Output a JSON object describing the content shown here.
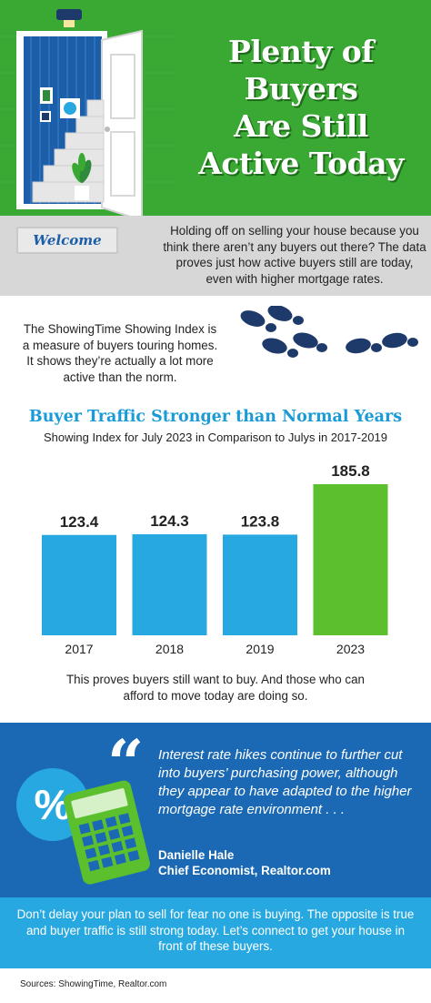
{
  "hero": {
    "title_lines": [
      "Plenty of",
      "Buyers",
      "Are Still",
      "Active Today"
    ],
    "mat_text": "Welcome"
  },
  "intro": {
    "text": "Holding off on selling your house because you think there aren’t any buyers out there? The data proves just how active buyers still are today, even with higher mortgage rates."
  },
  "index_description": {
    "text": "The ShowingTime Showing Index is a measure of buyers touring homes. It shows they’re actually a lot more active than the norm."
  },
  "chart_data": {
    "type": "bar",
    "title": "Buyer Traffic Stronger than Normal Years",
    "subtitle": "Showing Index for July 2023 in Comparison to Julys in 2017-2019",
    "categories": [
      "2017",
      "2018",
      "2019",
      "2023"
    ],
    "values": [
      123.4,
      124.3,
      123.8,
      185.8
    ],
    "value_labels": [
      "123.4",
      "124.3",
      "123.8",
      "185.8"
    ],
    "colors": [
      "#27a8e0",
      "#27a8e0",
      "#27a8e0",
      "#5bbf2e"
    ],
    "xlabel": "",
    "ylabel": "",
    "ylim": [
      0,
      185.8
    ],
    "grid": false,
    "legend": "none"
  },
  "chart_note": {
    "text": "This proves buyers still want to buy. And those who can afford to move today are doing so."
  },
  "quote": {
    "mark": "“",
    "text": "Interest rate hikes continue to further cut into buyers’ purchasing power, although they appear to have adapted to the higher mortgage rate environment . . .",
    "author_name": "Danielle Hale",
    "author_title": "Chief Economist, Realtor.com",
    "percent_symbol": "%"
  },
  "cta": {
    "text": "Don’t delay your plan to sell for fear no one is buying. The opposite is true and buyer traffic is still strong today. Let’s connect to get your house in front of these buyers."
  },
  "sources": {
    "text": "Sources: ShowingTime, Realtor.com"
  },
  "colors": {
    "hero_green": "#3aa934",
    "bar_blue": "#27a8e0",
    "bar_green": "#5bbf2e",
    "title_blue": "#1a9bd7",
    "quote_blue": "#1b69b4",
    "cta_blue": "#27a8e0",
    "intro_gray": "#d7d7d7"
  },
  "icons": [
    "door-icon",
    "stairs-icon",
    "plant-icon",
    "lamp-icon",
    "footprints-icon",
    "percent-icon",
    "calculator-icon",
    "quote-icon"
  ]
}
